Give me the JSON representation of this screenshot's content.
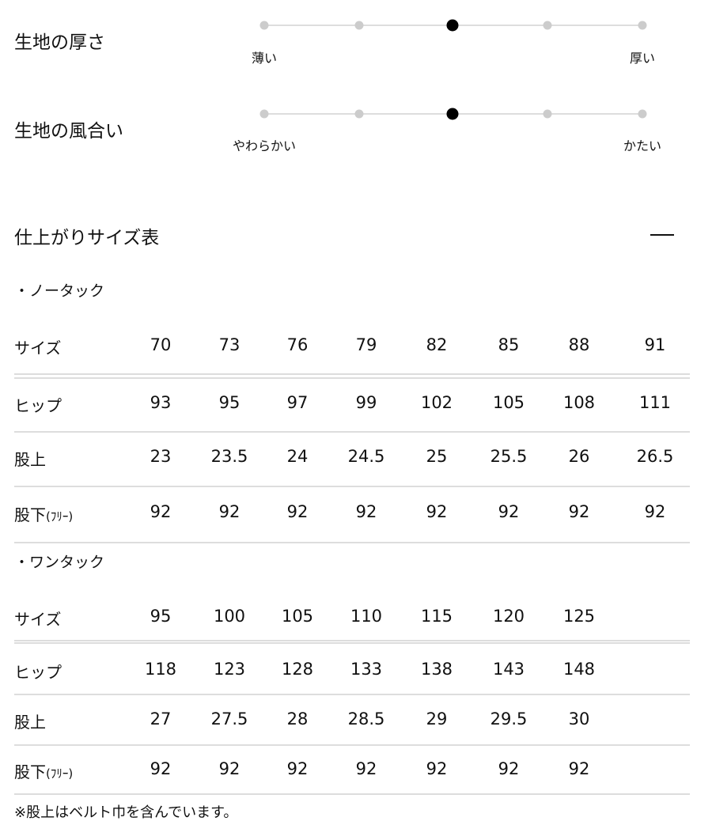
{
  "attributes": [
    {
      "title": "生地の厚さ",
      "min_label": "薄い",
      "max_label": "厚い",
      "steps": 5,
      "selected": 3
    },
    {
      "title": "生地の風合い",
      "min_label": "やわらかい",
      "max_label": "かたい",
      "steps": 5,
      "selected": 3
    }
  ],
  "size_chart": {
    "title": "仕上がりサイズ表",
    "toggle_icon": "minus-icon",
    "tables": [
      {
        "heading": "・ノータック",
        "rows": [
          {
            "label": "サイズ",
            "values": [
              "70",
              "73",
              "76",
              "79",
              "82",
              "85",
              "88",
              "91"
            ]
          },
          {
            "label": "ヒップ",
            "values": [
              "93",
              "95",
              "97",
              "99",
              "102",
              "105",
              "108",
              "111"
            ]
          },
          {
            "label": "股上",
            "values": [
              "23",
              "23.5",
              "24",
              "24.5",
              "25",
              "25.5",
              "26",
              "26.5"
            ]
          },
          {
            "label": "股下",
            "label_suffix": "(ﾌﾘｰ)",
            "values": [
              "92",
              "92",
              "92",
              "92",
              "92",
              "92",
              "92",
              "92"
            ]
          }
        ]
      },
      {
        "heading": "・ワンタック",
        "rows": [
          {
            "label": "サイズ",
            "values": [
              "95",
              "100",
              "105",
              "110",
              "115",
              "120",
              "125"
            ]
          },
          {
            "label": "ヒップ",
            "values": [
              "118",
              "123",
              "128",
              "133",
              "138",
              "143",
              "148"
            ]
          },
          {
            "label": "股上",
            "values": [
              "27",
              "27.5",
              "28",
              "28.5",
              "29",
              "29.5",
              "30"
            ]
          },
          {
            "label": "股下",
            "label_suffix": "(ﾌﾘｰ)",
            "values": [
              "92",
              "92",
              "92",
              "92",
              "92",
              "92",
              "92"
            ]
          }
        ]
      }
    ],
    "note": "※股上はベルト巾を含んでいます。"
  }
}
